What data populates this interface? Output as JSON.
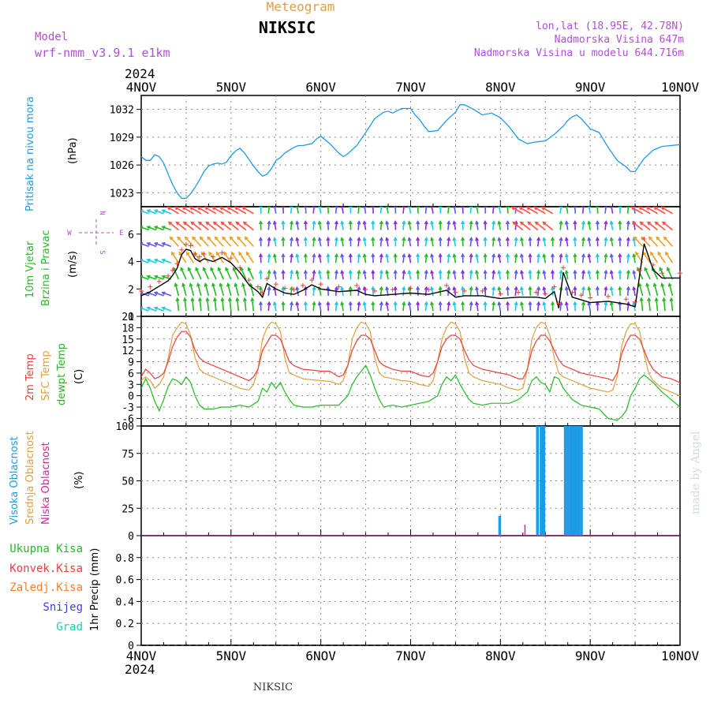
{
  "header": {
    "subtitle": "Meteogram",
    "station": "NIKSIC",
    "model_label": "Model",
    "model_name": "wrf-nmm_v3.9.1 e1km",
    "lonlat": "lon,lat (18.95E, 42.78N)",
    "elevation": "Nadmorska Visina 647m",
    "model_elevation": "Nadmorska Visina u modelu 644.716m",
    "year_top": "2024",
    "year_bottom": "2024",
    "footer_station": "NIKSIC",
    "credit": "made by Angel"
  },
  "colors": {
    "pressure": "#1e9be6",
    "temp2m": "#e8403f",
    "sfc": "#e0a040",
    "dewpt": "#22bb22",
    "high_cloud": "#1e9be6",
    "mid_cloud": "#e0a040",
    "low_cloud": "#dd2299",
    "model": "#b04fd8"
  },
  "chart_data": [
    {
      "type": "line",
      "panel": "pressure",
      "ylabel_main": "Pritisak na nivou mora",
      "ylabel_unit": "(hPa)",
      "x_ticks": [
        "4NOV",
        "5NOV",
        "6NOV",
        "7NOV",
        "8NOV",
        "9NOV",
        "10NOV"
      ],
      "ylim": [
        1021.5,
        1033.5
      ],
      "y_ticks": [
        "1023",
        "1026",
        "1029",
        "1032"
      ],
      "grid": true,
      "series": [
        {
          "x_days": [
            0,
            0.05,
            0.1,
            0.15,
            0.2,
            0.25,
            0.3,
            0.35,
            0.4,
            0.45,
            0.5,
            0.55,
            0.6,
            0.65,
            0.7,
            0.75,
            0.8,
            0.85,
            0.9,
            0.95,
            1.0,
            1.05,
            1.1,
            1.15,
            1.2,
            1.25,
            1.3,
            1.35,
            1.4,
            1.45,
            1.5,
            1.55,
            1.6,
            1.65,
            1.7,
            1.75,
            1.8,
            1.85,
            1.9,
            1.95,
            2.0,
            2.1,
            2.2,
            2.25,
            2.3,
            2.4,
            2.5,
            2.6,
            2.7,
            2.75,
            2.8,
            2.9,
            3.0,
            3.05,
            3.1,
            3.15,
            3.2,
            3.3,
            3.4,
            3.5,
            3.55,
            3.6,
            3.7,
            3.8,
            3.9,
            4.0,
            4.05,
            4.1,
            4.2,
            4.3,
            4.4,
            4.5,
            4.6,
            4.7,
            4.75,
            4.8,
            4.85,
            4.9,
            5.0,
            5.05,
            5.1,
            5.2,
            5.3,
            5.4,
            5.45,
            5.5,
            5.6,
            5.7,
            5.75,
            5.8,
            5.9,
            6.0
          ],
          "values": [
            1026.9,
            1026.5,
            1026.5,
            1027.1,
            1026.9,
            1026.2,
            1025.0,
            1023.9,
            1023.0,
            1022.4,
            1022.4,
            1022.9,
            1023.6,
            1024.4,
            1025.3,
            1025.9,
            1026.1,
            1026.2,
            1026.1,
            1026.3,
            1027.0,
            1027.5,
            1027.8,
            1027.3,
            1026.6,
            1025.9,
            1025.3,
            1024.8,
            1025.0,
            1025.6,
            1026.5,
            1026.8,
            1027.3,
            1027.6,
            1027.9,
            1028.1,
            1028.1,
            1028.2,
            1028.3,
            1028.8,
            1029.1,
            1028.3,
            1027.3,
            1026.9,
            1027.2,
            1028.1,
            1029.5,
            1031.0,
            1031.7,
            1031.8,
            1031.6,
            1032.1,
            1032.1,
            1031.4,
            1030.9,
            1030.2,
            1029.6,
            1029.7,
            1030.8,
            1031.7,
            1032.5,
            1032.5,
            1032.0,
            1031.4,
            1031.6,
            1031.1,
            1030.6,
            1030.1,
            1028.8,
            1028.3,
            1028.5,
            1028.6,
            1029.3,
            1030.2,
            1030.8,
            1031.2,
            1031.4,
            1031.0,
            1029.9,
            1029.7,
            1029.5,
            1027.9,
            1026.5,
            1025.8,
            1025.3,
            1025.3,
            1026.7,
            1027.6,
            1027.8,
            1028.0,
            1028.1,
            1028.2
          ]
        }
      ]
    },
    {
      "type": "line",
      "panel": "wind",
      "ylabel_main": "10m Vjetar",
      "ylabel_sub": "Brzina i Pravac",
      "ylabel_unit": "(m/s)",
      "compass_n": "N",
      "compass_e": "E",
      "compass_w": "W",
      "compass_s": "S",
      "ylim": [
        0,
        8
      ],
      "y_ticks": [
        "0",
        "2",
        "4",
        "6"
      ],
      "series": [
        {
          "name": "speed",
          "x_days": [
            0,
            0.1,
            0.2,
            0.3,
            0.35,
            0.4,
            0.45,
            0.5,
            0.55,
            0.6,
            0.65,
            0.7,
            0.8,
            0.9,
            1.0,
            1.1,
            1.2,
            1.3,
            1.35,
            1.4,
            1.5,
            1.6,
            1.7,
            1.8,
            1.9,
            2.0,
            2.2,
            2.4,
            2.5,
            2.6,
            2.8,
            3.0,
            3.2,
            3.4,
            3.5,
            3.6,
            3.8,
            4.0,
            4.2,
            4.4,
            4.5,
            4.6,
            4.65,
            4.7,
            4.8,
            4.9,
            5.0,
            5.2,
            5.4,
            5.5,
            5.55,
            5.6,
            5.7,
            5.8,
            6.0
          ],
          "values": [
            1.5,
            1.8,
            2.2,
            2.6,
            3.0,
            3.5,
            4.5,
            4.9,
            4.8,
            4.2,
            4.0,
            4.2,
            4.0,
            4.3,
            3.9,
            3.2,
            2.3,
            1.8,
            1.4,
            2.4,
            2.0,
            1.7,
            1.6,
            1.9,
            2.3,
            2.0,
            1.8,
            1.9,
            1.6,
            1.5,
            1.6,
            1.7,
            1.6,
            1.9,
            1.4,
            1.5,
            1.5,
            1.3,
            1.4,
            1.4,
            1.3,
            1.8,
            0.6,
            3.2,
            1.4,
            1.2,
            1.0,
            1.1,
            0.9,
            0.7,
            3.0,
            5.3,
            3.4,
            2.8,
            2.8
          ]
        }
      ]
    },
    {
      "type": "line",
      "panel": "temperature",
      "ylabel_1": "2m Temp",
      "ylabel_2": "SFC Temp",
      "ylabel_3": "dewpt Temp",
      "ylabel_unit": "(C)",
      "ylim": [
        -8,
        21
      ],
      "y_ticks": [
        "-6",
        "-3",
        "0",
        "3",
        "6",
        "9",
        "12",
        "15",
        "18",
        "21"
      ],
      "series": [
        {
          "name": "2m Temp",
          "x_days": [
            0,
            0.05,
            0.1,
            0.15,
            0.2,
            0.25,
            0.3,
            0.35,
            0.4,
            0.45,
            0.5,
            0.55,
            0.6,
            0.65,
            0.7,
            0.75,
            0.8,
            0.9,
            1.0,
            1.1,
            1.2,
            1.25,
            1.3,
            1.35,
            1.4,
            1.45,
            1.5,
            1.55,
            1.6,
            1.65,
            1.7,
            1.75,
            1.8,
            1.9,
            2.0,
            2.1,
            2.2,
            2.25,
            2.3,
            2.35,
            2.4,
            2.45,
            2.5,
            2.55,
            2.6,
            2.65,
            2.7,
            2.8,
            2.9,
            3.0,
            3.1,
            3.2,
            3.25,
            3.3,
            3.35,
            3.4,
            3.45,
            3.5,
            3.55,
            3.6,
            3.65,
            3.7,
            3.8,
            3.9,
            4.0,
            4.1,
            4.2,
            4.25,
            4.3,
            4.35,
            4.4,
            4.45,
            4.5,
            4.55,
            4.6,
            4.65,
            4.7,
            4.8,
            4.9,
            5.0,
            5.1,
            5.2,
            5.25,
            5.3,
            5.35,
            5.4,
            5.45,
            5.5,
            5.55,
            5.6,
            5.65,
            5.7,
            5.8,
            5.9,
            6.0
          ],
          "values": [
            5,
            7,
            6,
            4.5,
            5,
            6,
            9,
            13,
            15.5,
            17,
            17,
            15.5,
            12,
            10,
            9,
            8.5,
            8,
            7,
            6,
            5,
            4,
            5,
            7,
            12,
            14,
            16,
            16,
            15,
            12,
            9,
            8,
            7.5,
            7,
            6.8,
            6.5,
            6.5,
            5,
            5.5,
            8,
            12,
            14.5,
            16,
            16,
            15,
            12,
            9,
            8,
            7,
            6.5,
            6.5,
            5.5,
            5,
            6,
            9,
            13,
            15,
            16,
            16,
            15,
            12,
            9.5,
            8,
            7,
            6.5,
            6,
            5.5,
            4.5,
            4.5,
            7,
            12,
            14.5,
            16,
            16,
            14.5,
            12,
            9.5,
            8,
            7,
            6,
            5.5,
            5,
            4.5,
            4,
            6,
            11,
            14,
            16,
            16,
            15,
            12,
            9,
            7,
            5,
            4.5,
            3.5
          ]
        },
        {
          "name": "SFC Temp",
          "x_days": [
            0,
            0.05,
            0.1,
            0.15,
            0.2,
            0.25,
            0.3,
            0.35,
            0.4,
            0.45,
            0.5,
            0.55,
            0.6,
            0.65,
            0.7,
            0.75,
            0.8,
            0.9,
            1.0,
            1.1,
            1.2,
            1.25,
            1.3,
            1.35,
            1.4,
            1.45,
            1.5,
            1.55,
            1.6,
            1.65,
            1.7,
            1.75,
            1.8,
            1.9,
            2.0,
            2.1,
            2.2,
            2.25,
            2.3,
            2.35,
            2.4,
            2.45,
            2.5,
            2.55,
            2.6,
            2.65,
            2.7,
            2.8,
            2.9,
            3.0,
            3.1,
            3.2,
            3.25,
            3.3,
            3.35,
            3.4,
            3.45,
            3.5,
            3.55,
            3.6,
            3.65,
            3.7,
            3.8,
            3.9,
            4.0,
            4.1,
            4.2,
            4.25,
            4.3,
            4.35,
            4.4,
            4.45,
            4.5,
            4.55,
            4.6,
            4.65,
            4.7,
            4.8,
            4.9,
            5.0,
            5.1,
            5.2,
            5.25,
            5.3,
            5.35,
            5.4,
            5.45,
            5.5,
            5.55,
            5.6,
            5.65,
            5.7,
            5.8,
            5.9,
            6.0
          ],
          "values": [
            4,
            5,
            4,
            2,
            3,
            5,
            10,
            16,
            18,
            19.5,
            19,
            16,
            10,
            7,
            6,
            5.5,
            5,
            4,
            3,
            2,
            1.5,
            3,
            7,
            15,
            18,
            19.5,
            19,
            17,
            10,
            6,
            5.5,
            5,
            4.5,
            4.2,
            4,
            3.8,
            3,
            4,
            8,
            15,
            18,
            19.5,
            19,
            17,
            10,
            6,
            5,
            4.5,
            4,
            3.8,
            3,
            2.5,
            4,
            9,
            15,
            18,
            19.5,
            19,
            17,
            10,
            6,
            5,
            4,
            3.5,
            3,
            2,
            1.5,
            2,
            7,
            15,
            18,
            19.5,
            19,
            16,
            10,
            6,
            5,
            4,
            3,
            2,
            1.5,
            1,
            1.5,
            5,
            13,
            17,
            19,
            19,
            17,
            11,
            6,
            4,
            2,
            1,
            0
          ]
        },
        {
          "name": "dewpt Temp",
          "x_days": [
            0,
            0.05,
            0.1,
            0.15,
            0.2,
            0.25,
            0.3,
            0.35,
            0.4,
            0.45,
            0.5,
            0.55,
            0.6,
            0.65,
            0.7,
            0.8,
            0.9,
            1.0,
            1.1,
            1.2,
            1.3,
            1.35,
            1.4,
            1.45,
            1.5,
            1.55,
            1.6,
            1.65,
            1.7,
            1.8,
            1.9,
            2.0,
            2.1,
            2.2,
            2.3,
            2.35,
            2.4,
            2.45,
            2.5,
            2.55,
            2.6,
            2.65,
            2.7,
            2.8,
            2.9,
            3.0,
            3.1,
            3.2,
            3.3,
            3.35,
            3.4,
            3.45,
            3.5,
            3.55,
            3.6,
            3.65,
            3.7,
            3.8,
            3.9,
            4.0,
            4.1,
            4.2,
            4.3,
            4.35,
            4.4,
            4.45,
            4.5,
            4.55,
            4.6,
            4.65,
            4.7,
            4.8,
            4.9,
            5.0,
            5.1,
            5.2,
            5.3,
            5.35,
            5.4,
            5.45,
            5.5,
            5.55,
            5.6,
            5.65,
            5.7,
            5.8,
            5.9,
            6.0
          ],
          "values": [
            2,
            4.5,
            2,
            -1.5,
            -4,
            -1,
            2.5,
            4.5,
            4,
            3,
            5,
            3.5,
            0,
            -2.5,
            -3.5,
            -3.5,
            -3,
            -3,
            -2.5,
            -3,
            -1.5,
            2,
            1,
            3.5,
            2,
            3.5,
            1,
            -1,
            -2.5,
            -3,
            -3,
            -2.5,
            -2.5,
            -2.5,
            0,
            3,
            5,
            6.5,
            8,
            5.5,
            2,
            -1,
            -3,
            -2.5,
            -3,
            -2.5,
            -2,
            -1.5,
            0,
            3,
            5,
            4,
            5.5,
            3,
            1,
            -1,
            -2,
            -2.5,
            -2,
            -2,
            -2,
            -1,
            1,
            4,
            5,
            3.5,
            3,
            1,
            5,
            4.5,
            2,
            -1,
            -2.5,
            -3,
            -3.5,
            -6,
            -6.5,
            -5.5,
            -4,
            0,
            2,
            4.5,
            5.5,
            4.5,
            3.5,
            1,
            -1,
            -3
          ]
        }
      ]
    },
    {
      "type": "bar",
      "panel": "cloud",
      "ylabel_1": "Visoka Oblacnost",
      "ylabel_2": "Srednja Oblacnost",
      "ylabel_3": "Niska Oblacnost",
      "ylabel_unit": "(%)",
      "ylim": [
        0,
        100
      ],
      "y_ticks": [
        "0",
        "25",
        "50",
        "75",
        "100"
      ],
      "series": [
        {
          "name": "Visoka Oblacnost",
          "x_days": [
            3.99,
            4.41,
            4.45,
            4.48,
            4.72,
            4.75,
            4.78,
            4.81,
            4.84,
            4.87,
            4.9
          ],
          "values": [
            18,
            100,
            100,
            100,
            100,
            100,
            100,
            100,
            100,
            100,
            100
          ]
        },
        {
          "name": "Niska Oblacnost",
          "x_days": [
            4.28
          ],
          "values": [
            10
          ]
        }
      ]
    },
    {
      "type": "line",
      "panel": "precip",
      "ylabel_unit": "1hr Precip (mm)",
      "legend": [
        "Ukupna Kisa",
        "Konvek.Kisa",
        "Zaledj.Kisa",
        "Snijeg",
        "Grad"
      ],
      "ylim": [
        0,
        1
      ],
      "y_ticks": [
        "0",
        "0.2",
        "0.4",
        "0.6",
        "0.8"
      ],
      "series": []
    }
  ],
  "x_ticks_bottom": [
    "4NOV",
    "5NOV",
    "6NOV",
    "7NOV",
    "8NOV",
    "9NOV",
    "10NOV"
  ]
}
